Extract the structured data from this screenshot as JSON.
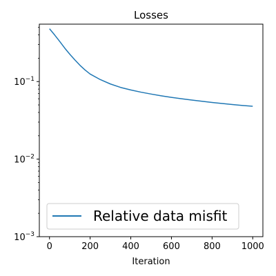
{
  "chart_data": {
    "type": "line",
    "title": "Losses",
    "xlabel": "Iteration",
    "ylabel": "",
    "yscale": "log",
    "xlim": [
      -50,
      1050
    ],
    "ylim": [
      0.001,
      0.55
    ],
    "x_ticks": [
      0,
      200,
      400,
      600,
      800,
      1000
    ],
    "x_tick_labels": [
      "0",
      "200",
      "400",
      "600",
      "800",
      "1000"
    ],
    "y_ticks": [
      0.001,
      0.01,
      0.1
    ],
    "y_tick_labels": [
      {
        "base": "10",
        "exp": "−3"
      },
      {
        "base": "10",
        "exp": "−2"
      },
      {
        "base": "10",
        "exp": "−1"
      }
    ],
    "grid": false,
    "legend_placement": "lower-left",
    "series": [
      {
        "name": "Relative data misfit",
        "color": "#1f77b4",
        "x": [
          0,
          25,
          50,
          75,
          100,
          125,
          150,
          175,
          200,
          250,
          300,
          350,
          400,
          450,
          500,
          550,
          600,
          650,
          700,
          750,
          800,
          850,
          900,
          950,
          1000
        ],
        "y": [
          0.48,
          0.4,
          0.33,
          0.27,
          0.225,
          0.19,
          0.162,
          0.141,
          0.125,
          0.106,
          0.093,
          0.084,
          0.078,
          0.073,
          0.069,
          0.0655,
          0.0625,
          0.06,
          0.0578,
          0.0557,
          0.0538,
          0.0521,
          0.0506,
          0.0492,
          0.048
        ]
      }
    ]
  }
}
